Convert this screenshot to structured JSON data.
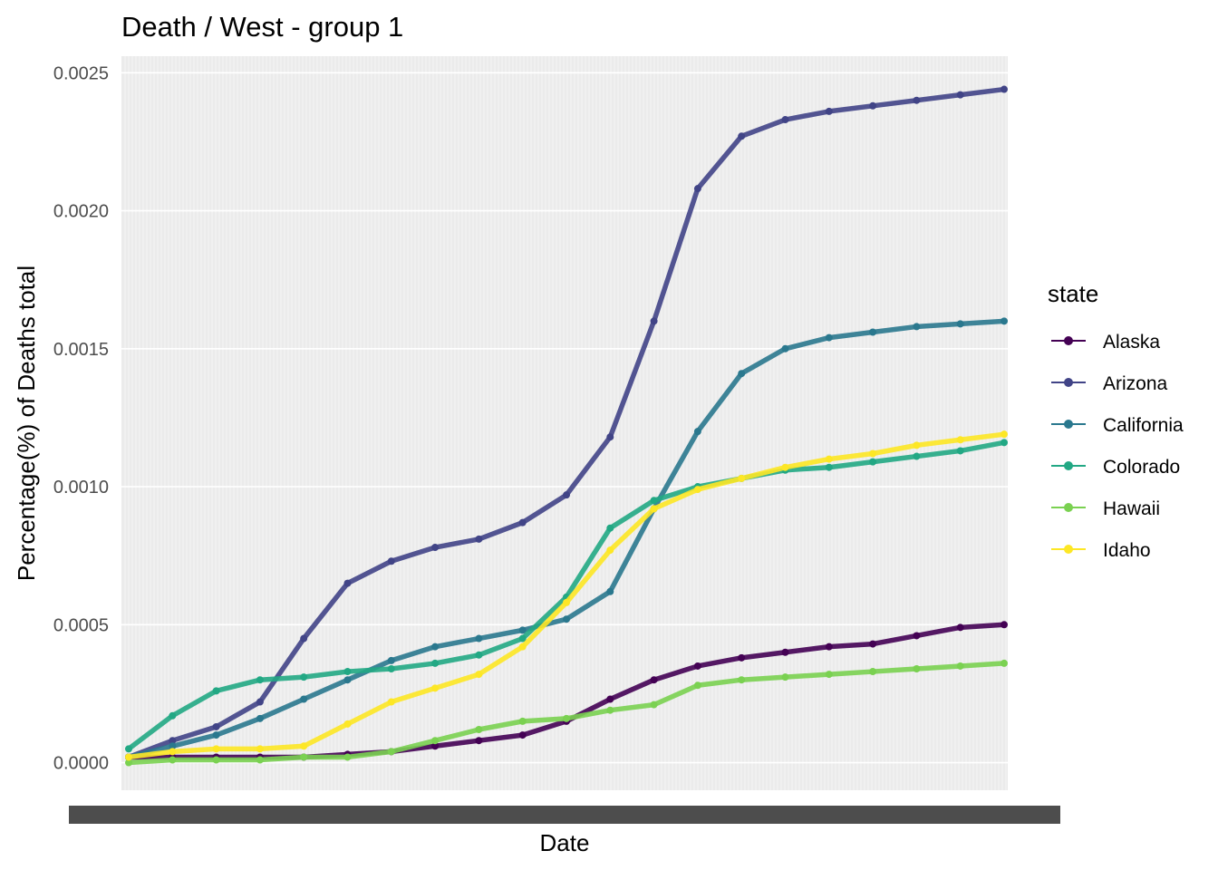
{
  "chart_data": {
    "type": "line",
    "title": "Death / West - group 1",
    "xlabel": "Date",
    "ylabel": "Percentage(%) of Deaths total",
    "ylim": [
      -0.0001,
      0.00256
    ],
    "yticks": [
      0.0,
      0.0005,
      0.001,
      0.0015,
      0.002,
      0.0025
    ],
    "ytick_labels": [
      "0.0000",
      "0.0005",
      "0.0010",
      "0.0015",
      "0.0020",
      "0.0025"
    ],
    "x_ticks_unreadable": true,
    "x": [
      0,
      20,
      40,
      60,
      80,
      100,
      120,
      140,
      160,
      180,
      200,
      220,
      240,
      260,
      280,
      300,
      320,
      340,
      360,
      380,
      400
    ],
    "grid": true,
    "legend": {
      "title": "state",
      "placement": "right"
    },
    "series": [
      {
        "name": "Alaska",
        "color": "#440154",
        "values": [
          2e-05,
          2e-05,
          2e-05,
          2e-05,
          2e-05,
          3e-05,
          4e-05,
          6e-05,
          8e-05,
          0.0001,
          0.00015,
          0.00023,
          0.0003,
          0.00035,
          0.00038,
          0.0004,
          0.00042,
          0.00043,
          0.00046,
          0.00049,
          0.0005
        ]
      },
      {
        "name": "Arizona",
        "color": "#414487",
        "values": [
          2e-05,
          8e-05,
          0.00013,
          0.00022,
          0.00045,
          0.00065,
          0.00073,
          0.00078,
          0.00081,
          0.00087,
          0.00097,
          0.00118,
          0.0016,
          0.00208,
          0.00227,
          0.00233,
          0.00236,
          0.00238,
          0.0024,
          0.00242,
          0.00244
        ]
      },
      {
        "name": "California",
        "color": "#2a788e",
        "values": [
          2e-05,
          6e-05,
          0.0001,
          0.00016,
          0.00023,
          0.0003,
          0.00037,
          0.00042,
          0.00045,
          0.00048,
          0.00052,
          0.00062,
          0.00092,
          0.0012,
          0.00141,
          0.0015,
          0.00154,
          0.00156,
          0.00158,
          0.00159,
          0.0016
        ]
      },
      {
        "name": "Colorado",
        "color": "#22a884",
        "values": [
          5e-05,
          0.00017,
          0.00026,
          0.0003,
          0.00031,
          0.00033,
          0.00034,
          0.00036,
          0.00039,
          0.00045,
          0.0006,
          0.00085,
          0.00095,
          0.001,
          0.00103,
          0.00106,
          0.00107,
          0.00109,
          0.00111,
          0.00113,
          0.00116
        ]
      },
      {
        "name": "Hawaii",
        "color": "#7ad151",
        "values": [
          0.0,
          1e-05,
          1e-05,
          1e-05,
          2e-05,
          2e-05,
          4e-05,
          8e-05,
          0.00012,
          0.00015,
          0.00016,
          0.00019,
          0.00021,
          0.00028,
          0.0003,
          0.00031,
          0.00032,
          0.00033,
          0.00034,
          0.00035,
          0.00036
        ]
      },
      {
        "name": "Idaho",
        "color": "#fde725",
        "values": [
          2e-05,
          4e-05,
          5e-05,
          5e-05,
          6e-05,
          0.00014,
          0.00022,
          0.00027,
          0.00032,
          0.00042,
          0.00058,
          0.00077,
          0.00092,
          0.00099,
          0.00103,
          0.00107,
          0.0011,
          0.00112,
          0.00115,
          0.00117,
          0.00119
        ]
      }
    ]
  }
}
